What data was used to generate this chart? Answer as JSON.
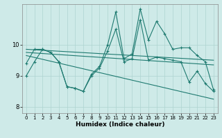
{
  "xlabel": "Humidex (Indice chaleur)",
  "ylabel": "",
  "background_color": "#ceeae8",
  "line_color": "#1e7a70",
  "grid_color": "#aed4d0",
  "xlim": [
    -0.5,
    23.5
  ],
  "ylim": [
    7.8,
    11.3
  ],
  "yticks": [
    8,
    9,
    10
  ],
  "xticks": [
    0,
    1,
    2,
    3,
    4,
    5,
    6,
    7,
    8,
    9,
    10,
    11,
    12,
    13,
    14,
    15,
    16,
    17,
    18,
    19,
    20,
    21,
    22,
    23
  ],
  "series1": [
    9.0,
    9.45,
    9.85,
    9.75,
    9.45,
    8.65,
    8.6,
    8.5,
    9.0,
    9.25,
    9.8,
    10.5,
    9.45,
    9.55,
    10.8,
    9.5,
    9.6,
    9.55,
    9.5,
    9.45,
    8.8,
    9.15,
    8.75,
    8.5
  ],
  "series2": [
    9.4,
    9.85,
    9.85,
    9.75,
    9.45,
    8.65,
    8.6,
    8.5,
    9.05,
    9.3,
    10.0,
    11.05,
    9.55,
    9.7,
    11.15,
    10.15,
    10.75,
    10.35,
    9.85,
    9.9,
    9.9,
    9.65,
    9.45,
    8.55
  ],
  "trend_top_start": 9.85,
  "trend_top_end": 9.5,
  "trend_mid_start": 9.75,
  "trend_mid_end": 9.35,
  "trend_bot_start": 9.65,
  "trend_bot_end": 8.25
}
